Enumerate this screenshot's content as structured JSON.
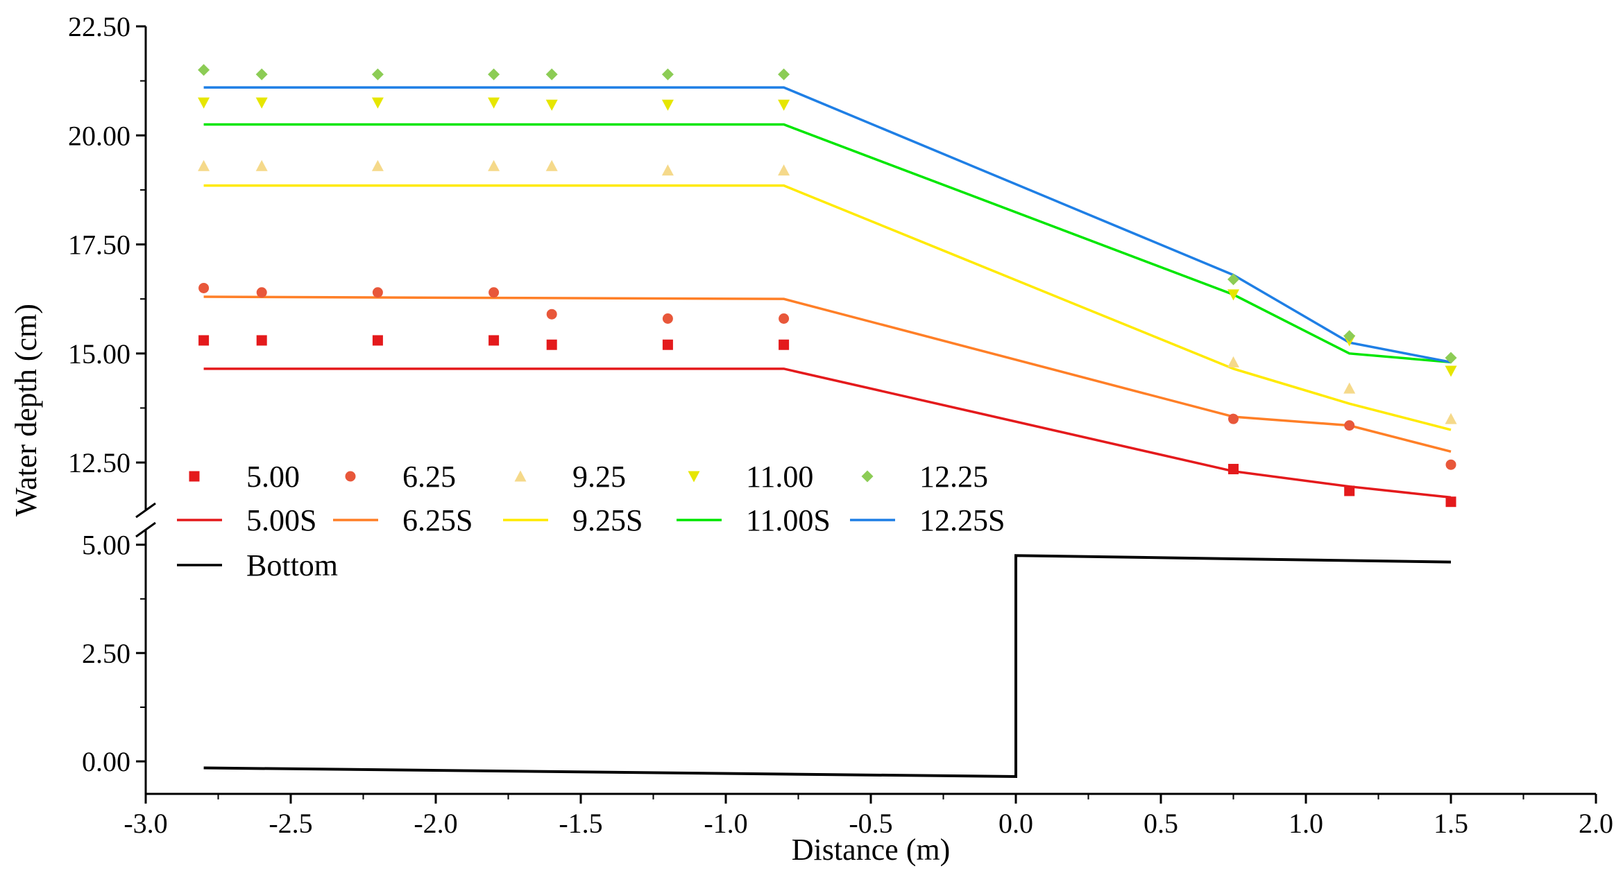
{
  "chart_data": {
    "type": "line",
    "title": "",
    "xlabel": "Distance (m)",
    "ylabel": "Water depth (cm)",
    "xlim": [
      -3.0,
      2.0
    ],
    "x_ticks": [
      -3.0,
      -2.5,
      -2.0,
      -1.5,
      -1.0,
      -0.5,
      0.0,
      0.5,
      1.0,
      1.5,
      2.0
    ],
    "x_tick_labels": [
      "-3.0",
      "-2.5",
      "-2.0",
      "-1.5",
      "-1.0",
      "-0.5",
      "0.0",
      "0.5",
      "1.0",
      "1.5",
      "2.0"
    ],
    "y_break": true,
    "y_segments": [
      {
        "name": "lower",
        "ylim": [
          -0.75,
          5.25
        ],
        "ticks": [
          0.0,
          2.5,
          5.0
        ],
        "tick_labels": [
          "0.00",
          "2.50",
          "5.00"
        ]
      },
      {
        "name": "upper",
        "ylim": [
          11.5,
          22.5
        ],
        "ticks": [
          12.5,
          15.0,
          17.5,
          20.0,
          22.5
        ],
        "tick_labels": [
          "12.50",
          "15.00",
          "17.50",
          "20.00",
          "22.50"
        ]
      }
    ],
    "grid": false,
    "legend_position": "middle-left",
    "colors": {
      "s5_00": "#e41a1c",
      "s6_25": "#ff7f27",
      "s9_25_marker": "#f5d98a",
      "s9_25_line": "#ffea00",
      "s11_00": "#e6e600",
      "s11_00_line": "#00e600",
      "s12_25_marker": "#8ccc55",
      "s12_25_line": "#1f7fe5",
      "bottom": "#000000"
    },
    "measured_series": [
      {
        "name": "5.00",
        "marker": "square",
        "color": "#e41a1c",
        "x": [
          -2.8,
          -2.6,
          -2.2,
          -1.8,
          -1.6,
          -1.2,
          -0.8,
          0.75,
          1.15,
          1.5
        ],
        "y": [
          15.3,
          15.3,
          15.3,
          15.3,
          15.2,
          15.2,
          15.2,
          12.35,
          11.85,
          11.6
        ]
      },
      {
        "name": "6.25",
        "marker": "circle",
        "color": "#e8573a",
        "x": [
          -2.8,
          -2.6,
          -2.2,
          -1.8,
          -1.6,
          -1.2,
          -0.8,
          0.75,
          1.15,
          1.5
        ],
        "y": [
          16.5,
          16.4,
          16.4,
          16.4,
          15.9,
          15.8,
          15.8,
          13.5,
          13.35,
          12.45
        ]
      },
      {
        "name": "9.25",
        "marker": "triangle-up",
        "color": "#f5d98a",
        "x": [
          -2.8,
          -2.6,
          -2.2,
          -1.8,
          -1.6,
          -1.2,
          -0.8,
          0.75,
          1.15,
          1.5
        ],
        "y": [
          19.3,
          19.3,
          19.3,
          19.3,
          19.3,
          19.2,
          19.2,
          14.8,
          14.2,
          13.5
        ]
      },
      {
        "name": "11.00",
        "marker": "triangle-down",
        "color": "#e6e600",
        "x": [
          -2.8,
          -2.6,
          -2.2,
          -1.8,
          -1.6,
          -1.2,
          -0.8,
          0.75,
          1.15,
          1.5
        ],
        "y": [
          20.75,
          20.75,
          20.75,
          20.75,
          20.7,
          20.7,
          20.7,
          16.35,
          15.3,
          14.6
        ]
      },
      {
        "name": "12.25",
        "marker": "diamond",
        "color": "#8ccc55",
        "x": [
          -2.8,
          -2.6,
          -2.2,
          -1.8,
          -1.6,
          -1.2,
          -0.8,
          0.75,
          1.15,
          1.5
        ],
        "y": [
          21.5,
          21.4,
          21.4,
          21.4,
          21.4,
          21.4,
          21.4,
          16.7,
          15.4,
          14.9
        ]
      }
    ],
    "simulated_series": [
      {
        "name": "5.00S",
        "color": "#e41a1c",
        "x": [
          -2.8,
          -0.8,
          0.75,
          1.15,
          1.5
        ],
        "y": [
          14.65,
          14.65,
          12.3,
          11.95,
          11.7
        ]
      },
      {
        "name": "6.25S",
        "color": "#ff7f27",
        "x": [
          -2.8,
          -0.8,
          0.75,
          1.15,
          1.5
        ],
        "y": [
          16.3,
          16.25,
          13.55,
          13.35,
          12.75
        ]
      },
      {
        "name": "9.25S",
        "color": "#ffea00",
        "x": [
          -2.8,
          -0.8,
          0.75,
          1.15,
          1.5
        ],
        "y": [
          18.85,
          18.85,
          14.65,
          13.85,
          13.25
        ]
      },
      {
        "name": "11.00S",
        "color": "#00e600",
        "x": [
          -2.8,
          -0.8,
          0.75,
          1.15,
          1.5
        ],
        "y": [
          20.25,
          20.25,
          16.35,
          15.0,
          14.8
        ]
      },
      {
        "name": "12.25S",
        "color": "#1f7fe5",
        "x": [
          -2.8,
          -0.8,
          0.75,
          1.15,
          1.5
        ],
        "y": [
          21.1,
          21.1,
          16.8,
          15.25,
          14.8
        ]
      }
    ],
    "bottom_series": {
      "name": "Bottom",
      "color": "#000000",
      "x": [
        -2.8,
        0.0,
        0.0,
        1.5
      ],
      "y": [
        -0.15,
        -0.35,
        4.75,
        4.6
      ]
    }
  }
}
